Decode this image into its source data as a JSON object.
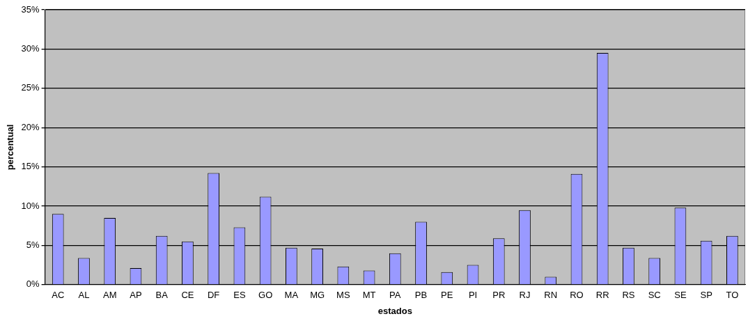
{
  "chart_data": {
    "type": "bar",
    "xlabel": "estados",
    "ylabel": "percentual",
    "categories": [
      "AC",
      "AL",
      "AM",
      "AP",
      "BA",
      "CE",
      "DF",
      "ES",
      "GO",
      "MA",
      "MG",
      "MS",
      "MT",
      "PA",
      "PB",
      "PE",
      "PI",
      "PR",
      "RJ",
      "RN",
      "RO",
      "RR",
      "RS",
      "SC",
      "SE",
      "SP",
      "TO"
    ],
    "values": [
      9.0,
      3.4,
      8.5,
      2.1,
      6.2,
      5.5,
      14.2,
      7.3,
      11.2,
      4.7,
      4.6,
      2.3,
      1.8,
      4.0,
      8.0,
      1.6,
      2.5,
      5.9,
      9.5,
      1.0,
      14.1,
      29.5,
      4.7,
      3.4,
      9.8,
      5.6,
      6.2
    ],
    "color": "#9999ff",
    "ylim": [
      0,
      35
    ],
    "yticks": [
      {
        "value": 0,
        "label": "0%"
      },
      {
        "value": 5,
        "label": "5%"
      },
      {
        "value": 10,
        "label": "10%"
      },
      {
        "value": 15,
        "label": "15%"
      },
      {
        "value": 20,
        "label": "20%"
      },
      {
        "value": 25,
        "label": "25%"
      },
      {
        "value": 30,
        "label": "30%"
      },
      {
        "value": 35,
        "label": "35%"
      }
    ],
    "grid": "y",
    "legend": false
  }
}
